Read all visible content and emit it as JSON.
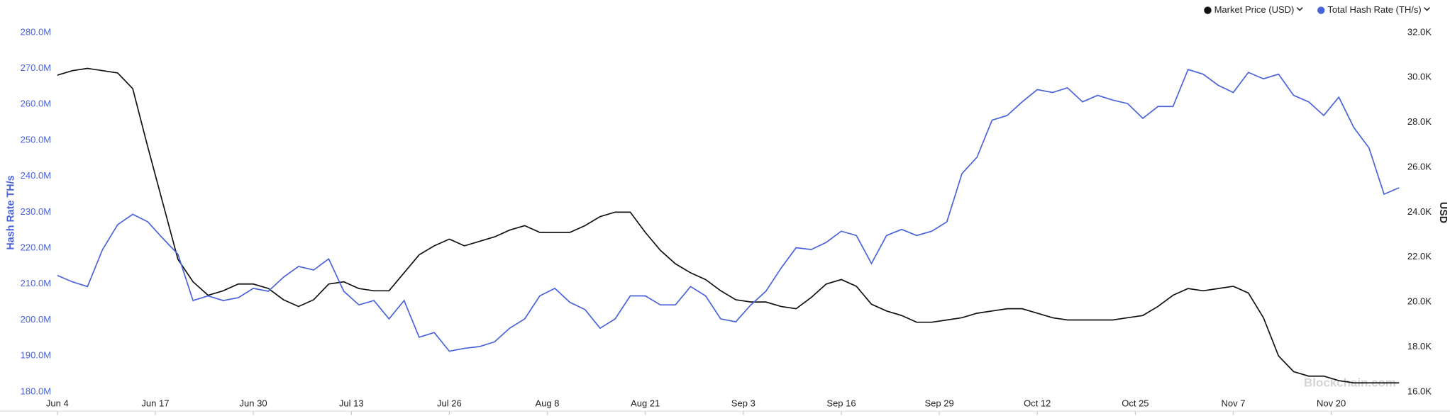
{
  "chart_data": {
    "type": "line",
    "y_label": "Hash Rate  TH/s",
    "y2_label": "USD",
    "watermark": "Blockchain.com",
    "legend_position": "top-right",
    "grid": false,
    "x": [
      0,
      2,
      4,
      6,
      8,
      10,
      12,
      14,
      16,
      18,
      20,
      22,
      24,
      26,
      28,
      30,
      32,
      34,
      36,
      38,
      40,
      42,
      44,
      46,
      48,
      50,
      52,
      54,
      56,
      58,
      60,
      62,
      64,
      66,
      68,
      70,
      72,
      74,
      76,
      78,
      80,
      82,
      84,
      86,
      88,
      90,
      92,
      94,
      96,
      98,
      100,
      102,
      104,
      106,
      108,
      110,
      112,
      114,
      116,
      118,
      120,
      122,
      124,
      126,
      128,
      130,
      132,
      134,
      136,
      138,
      140,
      142,
      144,
      146,
      148,
      150,
      152,
      154,
      156,
      158,
      160,
      162,
      164,
      166,
      168,
      170,
      172,
      174,
      176,
      178
    ],
    "xlim": [
      0,
      178
    ],
    "xticks": [
      {
        "value": 0,
        "label": "Jun 4"
      },
      {
        "value": 13,
        "label": "Jun 17"
      },
      {
        "value": 26,
        "label": "Jun 30"
      },
      {
        "value": 39,
        "label": "Jul 13"
      },
      {
        "value": 52,
        "label": "Jul 26"
      },
      {
        "value": 65,
        "label": "Aug 8"
      },
      {
        "value": 78,
        "label": "Aug 21"
      },
      {
        "value": 91,
        "label": "Sep 3"
      },
      {
        "value": 104,
        "label": "Sep 16"
      },
      {
        "value": 117,
        "label": "Sep 29"
      },
      {
        "value": 130,
        "label": "Oct 12"
      },
      {
        "value": 143,
        "label": "Oct 25"
      },
      {
        "value": 156,
        "label": "Nov 7"
      },
      {
        "value": 169,
        "label": "Nov 20"
      }
    ],
    "ylim": [
      180,
      280
    ],
    "yticks": [
      {
        "value": 180,
        "label": "180.0M"
      },
      {
        "value": 190,
        "label": "190.0M"
      },
      {
        "value": 200,
        "label": "200.0M"
      },
      {
        "value": 210,
        "label": "210.0M"
      },
      {
        "value": 220,
        "label": "220.0M"
      },
      {
        "value": 230,
        "label": "230.0M"
      },
      {
        "value": 240,
        "label": "240.0M"
      },
      {
        "value": 250,
        "label": "250.0M"
      },
      {
        "value": 260,
        "label": "260.0M"
      },
      {
        "value": 270,
        "label": "270.0M"
      },
      {
        "value": 280,
        "label": "280.0M"
      }
    ],
    "y2lim": [
      16,
      32
    ],
    "y2ticks": [
      {
        "value": 16,
        "label": "16.0K"
      },
      {
        "value": 18,
        "label": "18.0K"
      },
      {
        "value": 20,
        "label": "20.0K"
      },
      {
        "value": 22,
        "label": "22.0K"
      },
      {
        "value": 24,
        "label": "24.0K"
      },
      {
        "value": 26,
        "label": "26.0K"
      },
      {
        "value": 28,
        "label": "28.0K"
      },
      {
        "value": 30,
        "label": "30.0K"
      },
      {
        "value": 32,
        "label": "32.0K"
      }
    ],
    "series": [
      {
        "name": "Market Price (USD)",
        "color": "#111111",
        "axis": "y2",
        "values": [
          30.1,
          30.3,
          30.4,
          30.3,
          30.2,
          29.5,
          26.9,
          24.4,
          21.9,
          20.9,
          20.3,
          20.5,
          20.8,
          20.8,
          20.6,
          20.1,
          19.8,
          20.1,
          20.8,
          20.9,
          20.6,
          20.5,
          20.5,
          21.3,
          22.1,
          22.5,
          22.8,
          22.5,
          22.7,
          22.9,
          23.2,
          23.4,
          23.1,
          23.1,
          23.1,
          23.4,
          23.8,
          24.0,
          24.0,
          23.1,
          22.3,
          21.7,
          21.3,
          21.0,
          20.5,
          20.1,
          20.0,
          20.0,
          19.8,
          19.7,
          20.2,
          20.8,
          21.0,
          20.7,
          19.9,
          19.6,
          19.4,
          19.1,
          19.1,
          19.2,
          19.3,
          19.5,
          19.6,
          19.7,
          19.7,
          19.5,
          19.3,
          19.2,
          19.2,
          19.2,
          19.2,
          19.3,
          19.4,
          19.8,
          20.3,
          20.6,
          20.5,
          20.6,
          20.7,
          20.4,
          19.3,
          17.6,
          16.9,
          16.7,
          16.7,
          16.5,
          16.4,
          16.4,
          16.4,
          16.4
        ]
      },
      {
        "name": "Total Hash Rate (TH/s)",
        "color": "#4a63d9",
        "axis": "y",
        "values": [
          212.4,
          210.6,
          209.3,
          219.6,
          226.5,
          229.4,
          227.3,
          222.7,
          218.3,
          205.4,
          206.7,
          205.4,
          206.2,
          208.8,
          208.0,
          211.9,
          214.9,
          213.9,
          217.0,
          208.0,
          204.2,
          205.4,
          200.3,
          205.4,
          195.2,
          196.5,
          191.3,
          192.1,
          192.6,
          193.9,
          197.7,
          200.3,
          206.7,
          208.8,
          204.9,
          202.9,
          197.7,
          200.3,
          206.7,
          206.7,
          204.2,
          204.2,
          209.3,
          206.7,
          200.3,
          199.5,
          204.2,
          208.0,
          214.4,
          220.1,
          219.6,
          221.6,
          224.7,
          223.5,
          215.7,
          223.5,
          225.2,
          223.5,
          224.7,
          227.3,
          240.7,
          245.3,
          255.6,
          256.9,
          260.7,
          264.1,
          263.3,
          264.6,
          260.7,
          262.5,
          261.2,
          260.2,
          256.1,
          259.4,
          259.4,
          269.7,
          268.4,
          265.3,
          263.3,
          268.9,
          267.1,
          268.4,
          262.5,
          260.7,
          256.9,
          262.0,
          253.5,
          247.9,
          235.0,
          236.8
        ]
      }
    ]
  }
}
